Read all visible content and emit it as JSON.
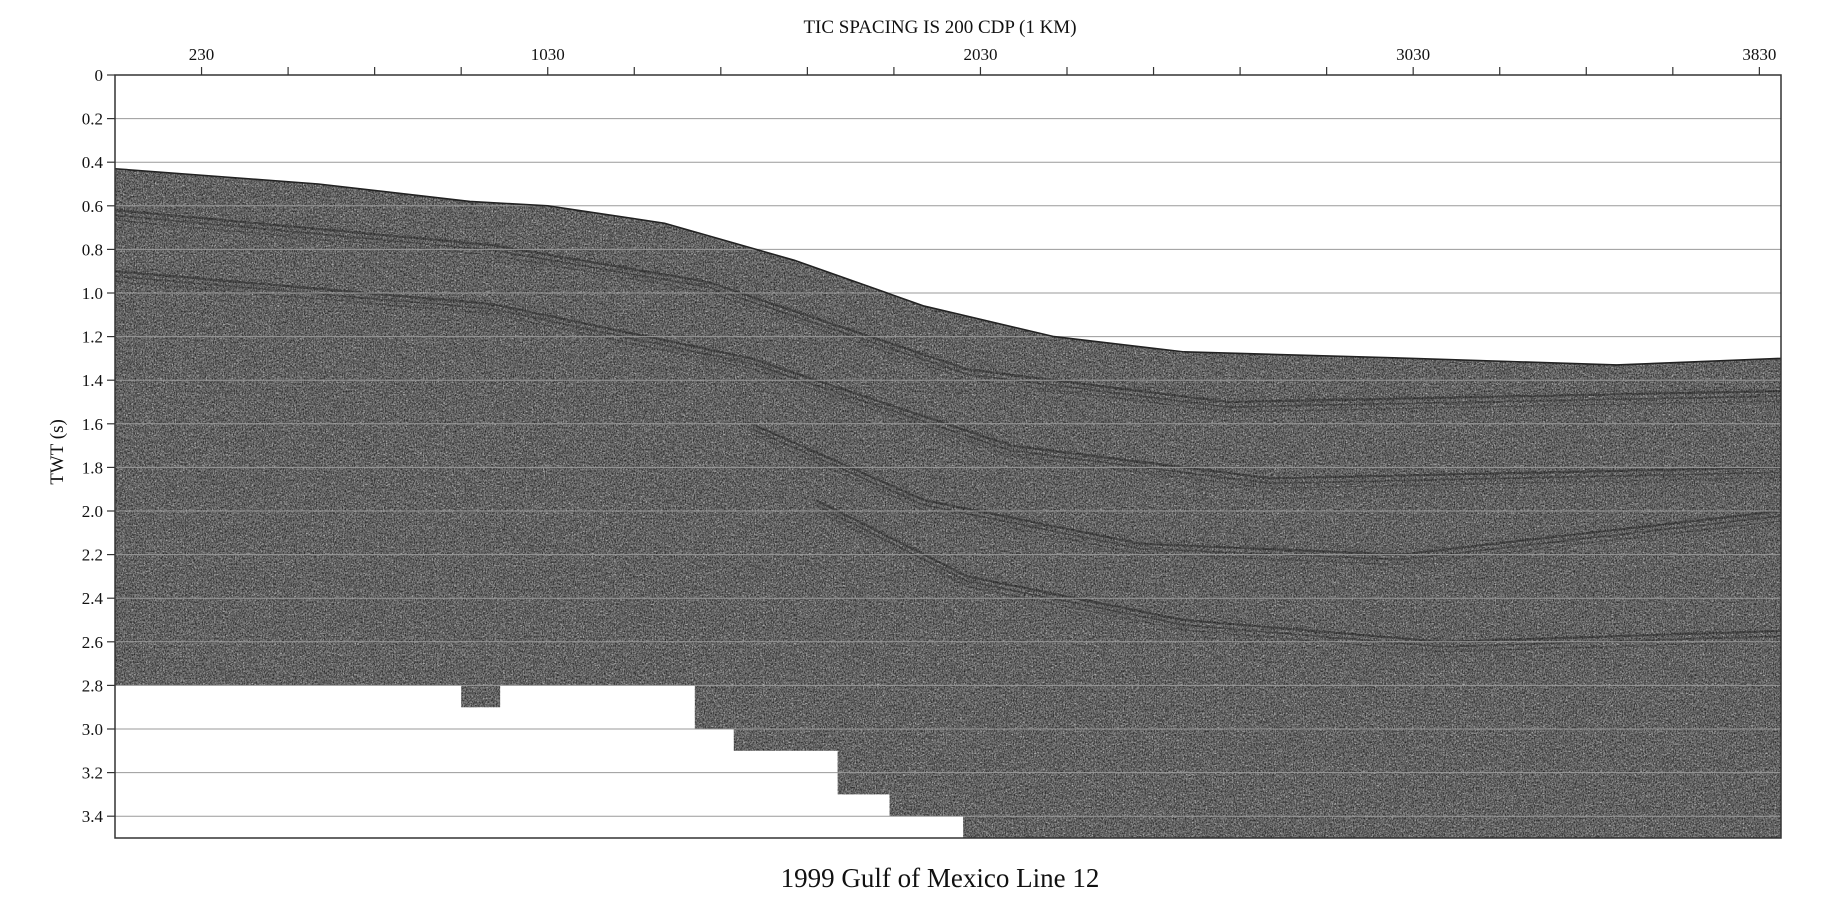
{
  "chart_data": {
    "type": "seismic_section",
    "top_title": "TIC SPACING IS 200 CDP (1 KM)",
    "caption": "1999 Gulf of Mexico Line 12",
    "ylabel": "TWT (s)",
    "x_tick_labels": [
      {
        "cdp": 230,
        "label": "230"
      },
      {
        "cdp": 1030,
        "label": "1030"
      },
      {
        "cdp": 2030,
        "label": "2030"
      },
      {
        "cdp": 3030,
        "label": "3030"
      },
      {
        "cdp": 3830,
        "label": "3830"
      }
    ],
    "x_minor_tick_spacing_cdp": 200,
    "xlim": [
      30,
      3880
    ],
    "ylim": [
      0,
      3.5
    ],
    "y_ticks": [
      {
        "value": 0,
        "label": "0"
      },
      {
        "value": 0.2,
        "label": "0.2"
      },
      {
        "value": 0.4,
        "label": "0.4"
      },
      {
        "value": 0.6,
        "label": "0.6"
      },
      {
        "value": 0.8,
        "label": "0.8"
      },
      {
        "value": 1.0,
        "label": "1.0"
      },
      {
        "value": 1.2,
        "label": "1.2"
      },
      {
        "value": 1.4,
        "label": "1.4"
      },
      {
        "value": 1.6,
        "label": "1.6"
      },
      {
        "value": 1.8,
        "label": "1.8"
      },
      {
        "value": 2.0,
        "label": "2.0"
      },
      {
        "value": 2.2,
        "label": "2.2"
      },
      {
        "value": 2.4,
        "label": "2.4"
      },
      {
        "value": 2.6,
        "label": "2.6"
      },
      {
        "value": 2.8,
        "label": "2.8"
      },
      {
        "value": 3.0,
        "label": "3.0"
      },
      {
        "value": 3.2,
        "label": "3.2"
      },
      {
        "value": 3.4,
        "label": "3.4"
      }
    ],
    "grid": "horizontal",
    "seafloor_twt": [
      {
        "cdp": 30,
        "twt": 0.43
      },
      {
        "cdp": 500,
        "twt": 0.5
      },
      {
        "cdp": 850,
        "twt": 0.58
      },
      {
        "cdp": 1030,
        "twt": 0.6
      },
      {
        "cdp": 1300,
        "twt": 0.68
      },
      {
        "cdp": 1600,
        "twt": 0.85
      },
      {
        "cdp": 1900,
        "twt": 1.06
      },
      {
        "cdp": 2200,
        "twt": 1.2
      },
      {
        "cdp": 2500,
        "twt": 1.27
      },
      {
        "cdp": 3030,
        "twt": 1.3
      },
      {
        "cdp": 3500,
        "twt": 1.33
      },
      {
        "cdp": 3880,
        "twt": 1.3
      }
    ],
    "data_base_twt": [
      {
        "cdp": 30,
        "twt": 2.8
      },
      {
        "cdp": 830,
        "twt": 2.8
      },
      {
        "cdp": 830,
        "twt": 2.9
      },
      {
        "cdp": 920,
        "twt": 2.9
      },
      {
        "cdp": 920,
        "twt": 2.8
      },
      {
        "cdp": 1370,
        "twt": 2.8
      },
      {
        "cdp": 1370,
        "twt": 3.0
      },
      {
        "cdp": 1460,
        "twt": 3.0
      },
      {
        "cdp": 1460,
        "twt": 3.1
      },
      {
        "cdp": 1700,
        "twt": 3.1
      },
      {
        "cdp": 1700,
        "twt": 3.3
      },
      {
        "cdp": 1820,
        "twt": 3.3
      },
      {
        "cdp": 1820,
        "twt": 3.4
      },
      {
        "cdp": 1990,
        "twt": 3.4
      },
      {
        "cdp": 1990,
        "twt": 3.5
      },
      {
        "cdp": 3880,
        "twt": 3.5
      }
    ],
    "reflectors_twt": [
      [
        {
          "cdp": 30,
          "twt": 0.62
        },
        {
          "cdp": 900,
          "twt": 0.78
        },
        {
          "cdp": 1400,
          "twt": 0.95
        },
        {
          "cdp": 2000,
          "twt": 1.35
        },
        {
          "cdp": 2600,
          "twt": 1.5
        },
        {
          "cdp": 3880,
          "twt": 1.45
        }
      ],
      [
        {
          "cdp": 30,
          "twt": 0.9
        },
        {
          "cdp": 900,
          "twt": 1.05
        },
        {
          "cdp": 1500,
          "twt": 1.3
        },
        {
          "cdp": 2100,
          "twt": 1.7
        },
        {
          "cdp": 2700,
          "twt": 1.85
        },
        {
          "cdp": 3880,
          "twt": 1.8
        }
      ],
      [
        {
          "cdp": 1500,
          "twt": 1.6
        },
        {
          "cdp": 1900,
          "twt": 1.95
        },
        {
          "cdp": 2400,
          "twt": 2.15
        },
        {
          "cdp": 3000,
          "twt": 2.2
        },
        {
          "cdp": 3880,
          "twt": 2.0
        }
      ],
      [
        {
          "cdp": 1650,
          "twt": 1.95
        },
        {
          "cdp": 2000,
          "twt": 2.3
        },
        {
          "cdp": 2500,
          "twt": 2.5
        },
        {
          "cdp": 3100,
          "twt": 2.6
        },
        {
          "cdp": 3880,
          "twt": 2.55
        }
      ]
    ],
    "colors": {
      "trace": "#000000",
      "background": "#ffffff",
      "grid": "#9a9a9a",
      "axis": "#333333"
    }
  }
}
